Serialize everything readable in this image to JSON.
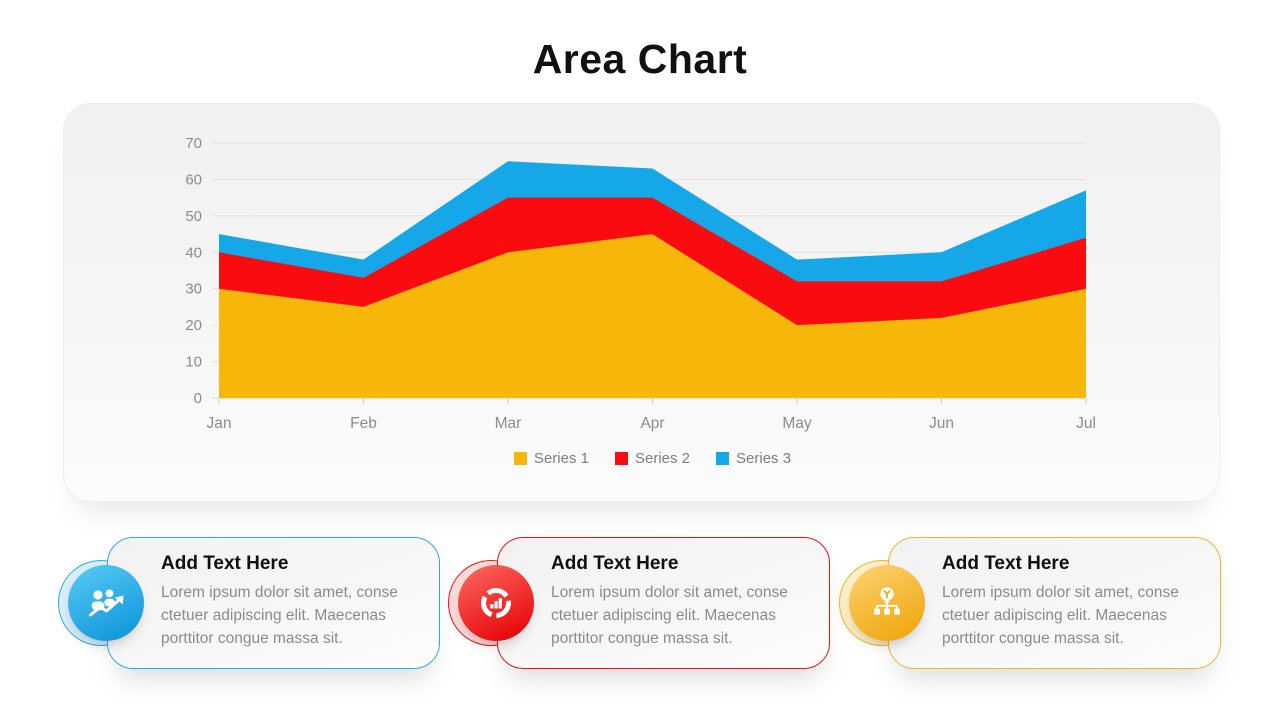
{
  "title": "Area Chart",
  "chart_data": {
    "type": "area",
    "style": "overlay (Series 3 drawn behind Series 2 behind Series 1)",
    "categories": [
      "Jan",
      "Feb",
      "Mar",
      "Apr",
      "May",
      "Jun",
      "Jul"
    ],
    "series": [
      {
        "name": "Series 1",
        "color": "#F7B60A",
        "values": [
          30,
          25,
          40,
          45,
          20,
          22,
          30
        ]
      },
      {
        "name": "Series 2",
        "color": "#F90B0F",
        "values": [
          40,
          33,
          55,
          55,
          32,
          32,
          44
        ]
      },
      {
        "name": "Series 3",
        "color": "#16A7E8",
        "values": [
          45,
          38,
          65,
          63,
          38,
          40,
          57
        ]
      }
    ],
    "title": "Area Chart",
    "xlabel": "",
    "ylabel": "",
    "ylim": [
      0,
      70
    ],
    "y_ticks": [
      0,
      10,
      20,
      30,
      40,
      50,
      60,
      70
    ],
    "grid": true,
    "legend_position": "bottom",
    "axis_text_color": "#8C8C8C",
    "grid_color": "#E1E1E2"
  },
  "cards": [
    {
      "title": "Add Text Here",
      "body": "Lorem ipsum dolor sit amet, conse ctetuer adipiscing elit. Maecenas porttitor congue massa sit.",
      "icon": "people-growth-icon",
      "accent": "#2FA9E1",
      "gradient": [
        "#53C6F3",
        "#0E97DB"
      ],
      "tint": "#D9EEFA"
    },
    {
      "title": "Add Text Here",
      "body": "Lorem ipsum dolor sit amet, conse ctetuer adipiscing elit. Maecenas porttitor congue massa sit.",
      "icon": "donut-chart-icon",
      "accent": "#EF1012",
      "gradient": [
        "#FC615A",
        "#E60407"
      ],
      "tint": "#FBDADA"
    },
    {
      "title": "Add Text Here",
      "body": "Lorem ipsum dolor sit amet, conse ctetuer adipiscing elit. Maecenas porttitor congue massa sit.",
      "icon": "hierarchy-idea-icon",
      "accent": "#F1B52B",
      "gradient": [
        "#FBD06B",
        "#EFA60B"
      ],
      "tint": "#FBEEC8"
    }
  ]
}
